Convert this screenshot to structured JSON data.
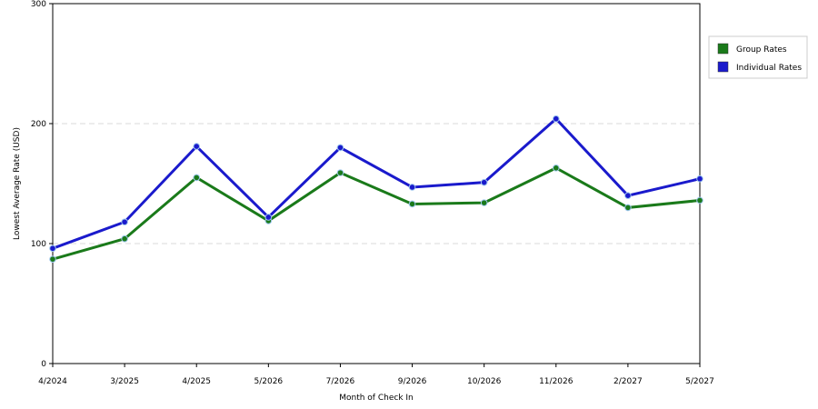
{
  "chart_data": {
    "type": "line",
    "categories": [
      "4/2024",
      "3/2025",
      "4/2025",
      "5/2026",
      "7/2026",
      "9/2026",
      "10/2026",
      "11/2026",
      "2/2027",
      "5/2027"
    ],
    "series": [
      {
        "name": "Group Rates",
        "color": "#1a7a1a",
        "values": [
          87,
          104,
          155,
          119,
          159,
          133,
          134,
          163,
          130,
          136
        ]
      },
      {
        "name": "Individual Rates",
        "color": "#1a1acc",
        "values": [
          96,
          118,
          181,
          122,
          180,
          147,
          151,
          204,
          140,
          154
        ]
      }
    ],
    "xlabel": "Month of Check In",
    "ylabel": "Lowest Average Rate (USD)",
    "ylim": [
      0,
      300
    ],
    "yticks": [
      0,
      100,
      200,
      300
    ],
    "grid": true,
    "legend_position": "top-right"
  }
}
